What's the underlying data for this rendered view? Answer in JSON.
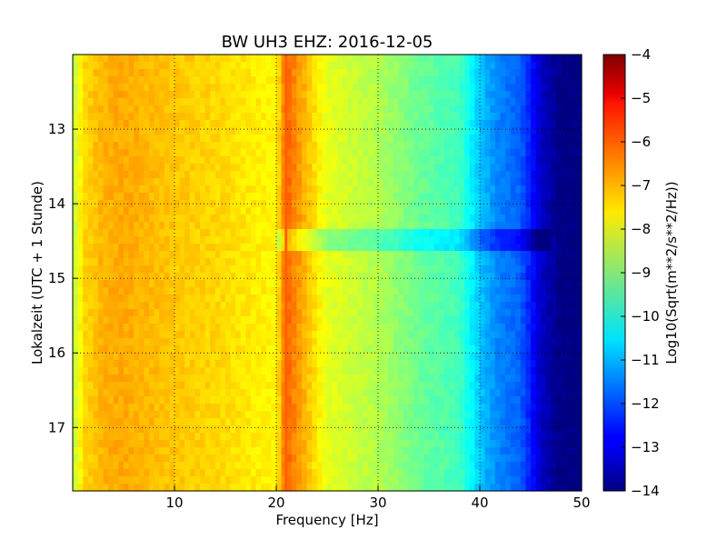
{
  "chart_data": {
    "type": "heatmap",
    "title": "BW UH3 EHZ: 2016-12-05",
    "xlabel": "Frequency [Hz]",
    "ylabel": "Lokalzeit (UTC + 1 Stunde)",
    "xlim": [
      0,
      50
    ],
    "ylim": [
      17.85,
      12.0
    ],
    "x_ticks": [
      10,
      20,
      30,
      40,
      50
    ],
    "y_ticks": [
      13,
      14,
      15,
      16,
      17
    ],
    "grid": true,
    "colorbar": {
      "label": "Log10(Sqrt(m**2/s**2/Hz))",
      "range": [
        -14,
        -4
      ],
      "ticks": [
        -4,
        -5,
        -6,
        -7,
        -8,
        -9,
        -10,
        -11,
        -12,
        -13,
        -14
      ],
      "colormap": "jet"
    },
    "frequency_profile": {
      "frequency_hz": [
        0,
        1,
        3,
        5,
        10,
        15,
        20,
        21,
        25,
        30,
        34,
        38,
        40,
        42,
        44,
        46,
        48,
        50
      ],
      "log_amplitude": [
        -8.5,
        -7.4,
        -7.0,
        -6.9,
        -7.2,
        -7.4,
        -7.7,
        -6.2,
        -8.0,
        -8.5,
        -9.2,
        -9.6,
        -10.8,
        -11.5,
        -11.8,
        -13.3,
        -14.0,
        -14.0
      ]
    },
    "spectral_line": {
      "frequency_hz": 21,
      "log_amplitude": -6.2
    },
    "quiet_interval": {
      "start_hour": 14.32,
      "end_hour": 14.62,
      "frequency_from_hz": 20,
      "frequency_to_hz": 47
    }
  }
}
